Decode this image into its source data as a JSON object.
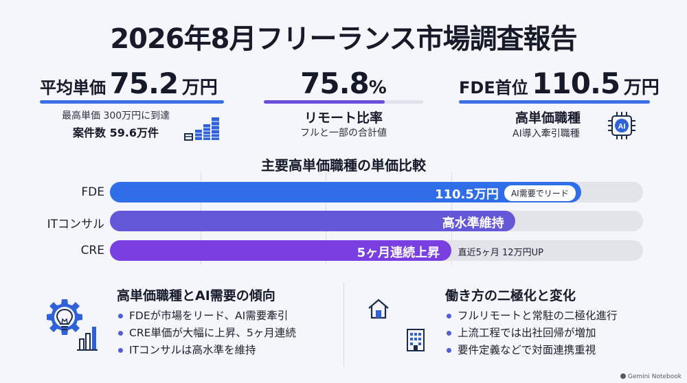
{
  "title": "2026年8月フリーランス市場調査報告",
  "kpis": {
    "avg": {
      "label": "平均単価",
      "value": "75.2",
      "unit": "万円",
      "sub1": "最高単価 300万円に到達",
      "sub2": "案件数 59.6万件",
      "icon": "bar-chart-icon"
    },
    "remote": {
      "value": "75.8",
      "unit": "%",
      "title": "リモート比率",
      "sub": "フルと一部の合計値",
      "progress": 0.758
    },
    "fde": {
      "label": "FDE首位",
      "value": "110.5",
      "unit": "万円",
      "title": "高単価職種",
      "sub": "AI導入牽引職種",
      "icon": "ai-chip-icon"
    }
  },
  "chart_title": "主要高単価職種の単価比較",
  "chart_data": {
    "type": "bar",
    "title": "主要高単価職種の単価比較",
    "categories": [
      "FDE",
      "ITコンサル",
      "CRE"
    ],
    "values": [
      110.5,
      95,
      80
    ],
    "bar_labels": [
      "110.5万円",
      "高水準維持",
      "5ヶ月連続上昇"
    ],
    "annotations": [
      "AI需要でリード",
      "",
      "直近5ヶ月 12万円UP"
    ],
    "colors": [
      "#2f6ee8",
      "#6558d8",
      "#7a3fe0"
    ],
    "xlim": [
      0,
      125
    ],
    "grid": true
  },
  "left_section": {
    "title": "高単価職種とAI需要の傾向",
    "icon": "lightbulb-gear-icon",
    "bullets": [
      "FDEが市場をリード、AI需要牽引",
      "CRE単価が大幅に上昇、5ヶ月連続",
      "ITコンサルは高水準を維持"
    ]
  },
  "right_section": {
    "title": "働き方の二極化と変化",
    "icons": [
      "home-icon",
      "office-building-icon"
    ],
    "bullets": [
      "フルリモートと常駐の二極化進行",
      "上流工程では出社回帰が増加",
      "要件定義などで対面連携重視"
    ]
  },
  "brand": "Gemini Notebook"
}
